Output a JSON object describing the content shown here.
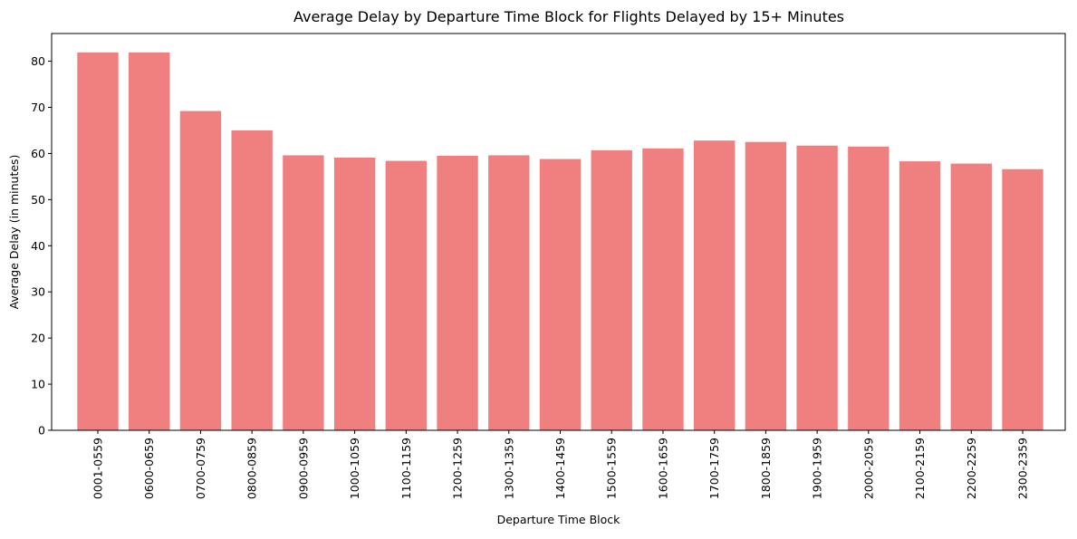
{
  "chart_data": {
    "type": "bar",
    "title": "Average Delay by Departure Time Block for Flights Delayed by 15+ Minutes",
    "xlabel": "Departure Time Block",
    "ylabel": "Average Delay (in minutes)",
    "categories": [
      "0001-0559",
      "0600-0659",
      "0700-0759",
      "0800-0859",
      "0900-0959",
      "1000-1059",
      "1100-1159",
      "1200-1259",
      "1300-1359",
      "1400-1459",
      "1500-1559",
      "1600-1659",
      "1700-1759",
      "1800-1859",
      "1900-1959",
      "2000-2059",
      "2100-2159",
      "2200-2259",
      "2300-2359"
    ],
    "values": [
      81.9,
      81.9,
      69.2,
      65.0,
      59.6,
      59.1,
      58.4,
      59.5,
      59.6,
      58.8,
      60.7,
      61.1,
      62.8,
      62.5,
      61.7,
      61.5,
      58.3,
      57.8,
      56.6
    ],
    "ylim": [
      0,
      86
    ],
    "yticks": [
      0,
      10,
      20,
      30,
      40,
      50,
      60,
      70,
      80
    ],
    "bar_color": "#f08080",
    "grid": false,
    "legend": false
  }
}
